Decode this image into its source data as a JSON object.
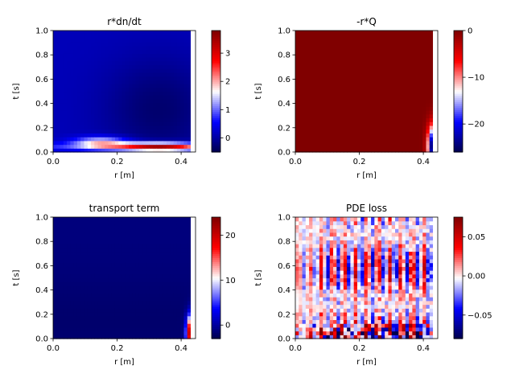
{
  "chart_data": [
    {
      "type": "heatmap",
      "title": "r*dn/dt",
      "xlabel": "r [m]",
      "ylabel": "t [s]",
      "xlim": [
        0.0,
        0.445
      ],
      "ylim": [
        0.0,
        1.0
      ],
      "x_ticks": [
        "0.0",
        "0.2",
        "0.4"
      ],
      "y_ticks": [
        "0.0",
        "0.2",
        "0.4",
        "0.6",
        "0.8",
        "1.0"
      ],
      "colormap": "seismic",
      "color_range": [
        -0.5,
        3.8
      ],
      "colorbar_ticks": [
        "0",
        "1",
        "2",
        "3"
      ],
      "colorbar_values": [
        0,
        1,
        2,
        3
      ],
      "field": "dndt"
    },
    {
      "type": "heatmap",
      "title": "-r*Q",
      "xlabel": "r [m]",
      "ylabel": "t [s]",
      "xlim": [
        0.0,
        0.445
      ],
      "ylim": [
        0.0,
        1.0
      ],
      "x_ticks": [
        "0.0",
        "0.2",
        "0.4"
      ],
      "y_ticks": [
        "0.0",
        "0.2",
        "0.4",
        "0.6",
        "0.8",
        "1.0"
      ],
      "colormap": "seismic",
      "color_range": [
        -26,
        0
      ],
      "colorbar_ticks": [
        "0",
        "−10",
        "−20"
      ],
      "colorbar_values": [
        0,
        -10,
        -20
      ],
      "field": "Q"
    },
    {
      "type": "heatmap",
      "title": "transport term",
      "xlabel": "r [m]",
      "ylabel": "t [s]",
      "xlim": [
        0.0,
        0.445
      ],
      "ylim": [
        0.0,
        1.0
      ],
      "x_ticks": [
        "0.0",
        "0.2",
        "0.4"
      ],
      "y_ticks": [
        "0.0",
        "0.2",
        "0.4",
        "0.6",
        "0.8",
        "1.0"
      ],
      "colormap": "seismic",
      "color_range": [
        -3,
        24
      ],
      "colorbar_ticks": [
        "0",
        "10",
        "20"
      ],
      "colorbar_values": [
        0,
        10,
        20
      ],
      "field": "transport"
    },
    {
      "type": "heatmap",
      "title": "PDE loss",
      "xlabel": "r [m]",
      "ylabel": "t [s]",
      "xlim": [
        0.0,
        0.445
      ],
      "ylim": [
        0.0,
        1.0
      ],
      "x_ticks": [
        "0.0",
        "0.2",
        "0.4"
      ],
      "y_ticks": [
        "0.0",
        "0.2",
        "0.4",
        "0.6",
        "0.8",
        "1.0"
      ],
      "colormap": "seismic",
      "color_range": [
        -0.08,
        0.075
      ],
      "colorbar_ticks": [
        "0.05",
        "0.00",
        "−0.05"
      ],
      "colorbar_values": [
        0.05,
        0.0,
        -0.05
      ],
      "field": "loss"
    }
  ]
}
